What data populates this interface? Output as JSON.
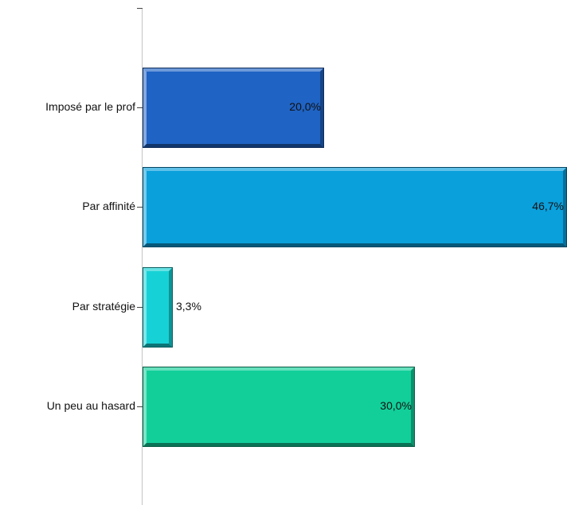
{
  "chart_data": {
    "type": "bar",
    "orientation": "horizontal",
    "categories": [
      "Imposé par le prof",
      "Par affinité",
      "Par stratégie",
      "Un peu au hasard"
    ],
    "values": [
      20.0,
      46.7,
      3.3,
      30.0
    ],
    "value_labels": [
      "20,0%",
      "46,7%",
      "3,3%",
      "30,0%"
    ],
    "colors": [
      "#1f63c4",
      "#0aa0dc",
      "#16d2d6",
      "#12cf9a"
    ],
    "xlim": [
      0,
      46.7
    ],
    "grid": false,
    "legend": "none"
  }
}
